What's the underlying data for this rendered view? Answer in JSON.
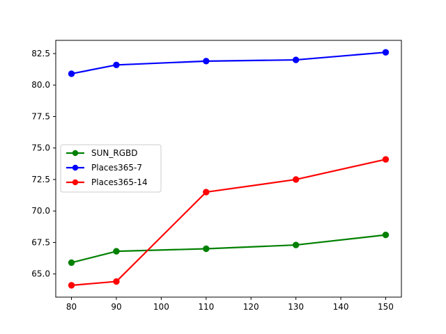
{
  "chart_data": {
    "type": "line",
    "title": "",
    "xlabel": "",
    "ylabel": "",
    "x": [
      80,
      90,
      110,
      130,
      150
    ],
    "xlim": [
      76.5,
      153.5
    ],
    "ylim": [
      63.16,
      83.55
    ],
    "xticks": [
      80,
      90,
      100,
      110,
      120,
      130,
      140,
      150
    ],
    "xtick_labels": [
      "80",
      "90",
      "100",
      "110",
      "120",
      "130",
      "140",
      "150"
    ],
    "yticks": [
      65.0,
      67.5,
      70.0,
      72.5,
      75.0,
      77.5,
      80.0,
      82.5
    ],
    "ytick_labels": [
      "65.0",
      "67.5",
      "70.0",
      "72.5",
      "75.0",
      "77.5",
      "80.0",
      "82.5"
    ],
    "grid": false,
    "legend_position": "center-left",
    "series": [
      {
        "name": "SUN_RGBD",
        "color": "#008000",
        "values": [
          65.9,
          66.8,
          67.0,
          67.3,
          68.1
        ]
      },
      {
        "name": "Places365-7",
        "color": "#0000ff",
        "values": [
          80.9,
          81.6,
          81.9,
          82.0,
          82.6
        ]
      },
      {
        "name": "Places365-14",
        "color": "#ff0000",
        "values": [
          64.1,
          64.4,
          71.5,
          72.5,
          74.1
        ]
      }
    ]
  }
}
